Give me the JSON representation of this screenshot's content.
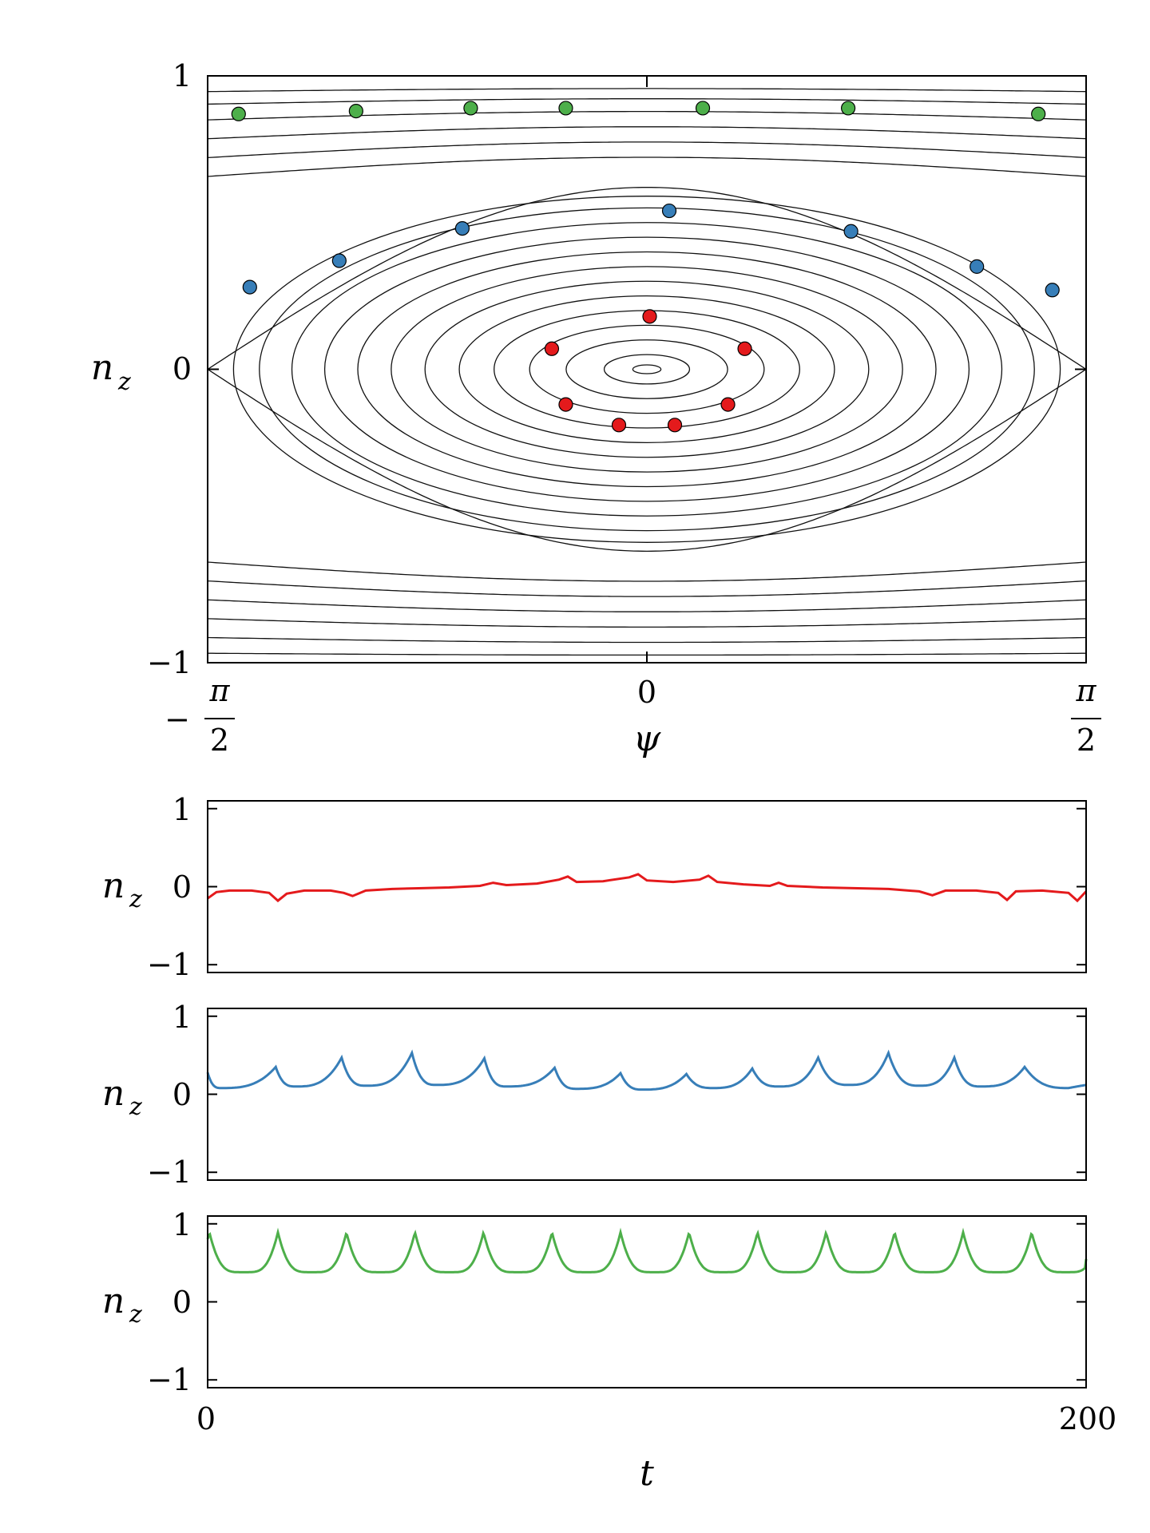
{
  "chart_data": [
    {
      "type": "scatter",
      "description_role": "phase-portrait",
      "xlabel": "ψ",
      "ylabel": "n",
      "ylabel_sub": "z",
      "xlim": [
        -1.5708,
        1.5708
      ],
      "ylim": [
        -1,
        1
      ],
      "xticks": [
        {
          "value": -1.5708,
          "label_sign": "−",
          "label_num": "π",
          "label_den": "2"
        },
        {
          "value": 0,
          "label": "0"
        },
        {
          "value": 1.5708,
          "label_sign": "",
          "label_num": "π",
          "label_den": "2"
        }
      ],
      "yticks": [
        {
          "value": -1,
          "label": "−1"
        },
        {
          "value": 0,
          "label": "0"
        },
        {
          "value": 1,
          "label": "1"
        }
      ],
      "separatrix_amplitude": 0.62,
      "closed_orbit_amplitudes": [
        0.015,
        0.05,
        0.1,
        0.15,
        0.2,
        0.25,
        0.3,
        0.35,
        0.4,
        0.45,
        0.5,
        0.55,
        0.59
      ],
      "open_orbit_levels": [
        -0.97,
        -0.92,
        -0.86,
        -0.8,
        -0.74,
        -0.68,
        0.68,
        0.74,
        0.8,
        0.86,
        0.91,
        0.95
      ],
      "series": [
        {
          "color": "#e41a1c",
          "points": [
            [
              0.01,
              0.18
            ],
            [
              0.35,
              0.07
            ],
            [
              0.29,
              -0.12
            ],
            [
              0.1,
              -0.19
            ],
            [
              -0.1,
              -0.19
            ],
            [
              -0.29,
              -0.12
            ],
            [
              -0.34,
              0.07
            ]
          ]
        },
        {
          "color": "#377eb8",
          "points": [
            [
              -1.42,
              0.28
            ],
            [
              -1.1,
              0.37
            ],
            [
              -0.66,
              0.48
            ],
            [
              0.08,
              0.54
            ],
            [
              0.73,
              0.47
            ],
            [
              1.18,
              0.35
            ],
            [
              1.45,
              0.27
            ]
          ]
        },
        {
          "color": "#4daf4a",
          "points": [
            [
              -1.46,
              0.87
            ],
            [
              -1.04,
              0.88
            ],
            [
              -0.63,
              0.89
            ],
            [
              -0.29,
              0.89
            ],
            [
              0.2,
              0.89
            ],
            [
              0.72,
              0.89
            ],
            [
              1.4,
              0.87
            ]
          ]
        }
      ]
    },
    {
      "type": "line",
      "ylabel": "n",
      "ylabel_sub": "z",
      "ylim": [
        -1.1,
        1.1
      ],
      "xlim": [
        0,
        200
      ],
      "yticks": [
        {
          "value": -1,
          "label": "−1"
        },
        {
          "value": 0,
          "label": "0"
        },
        {
          "value": 1,
          "label": "1"
        }
      ],
      "color": "#e41a1c",
      "x": [
        0,
        2,
        5,
        10,
        14,
        16,
        18,
        22,
        28,
        31,
        33,
        36,
        42,
        48,
        55,
        62,
        65,
        68,
        75,
        80,
        82,
        84,
        90,
        96,
        98,
        100,
        106,
        112,
        114,
        116,
        122,
        128,
        130,
        132,
        140,
        148,
        155,
        162,
        165,
        168,
        175,
        180,
        182,
        184,
        190,
        196,
        198,
        200
      ],
      "y": [
        -0.15,
        -0.07,
        -0.05,
        -0.05,
        -0.08,
        -0.18,
        -0.09,
        -0.05,
        -0.05,
        -0.08,
        -0.12,
        -0.05,
        -0.03,
        -0.02,
        -0.01,
        0.01,
        0.05,
        0.02,
        0.04,
        0.09,
        0.13,
        0.06,
        0.07,
        0.12,
        0.16,
        0.08,
        0.06,
        0.09,
        0.14,
        0.06,
        0.03,
        0.01,
        0.05,
        0.01,
        -0.01,
        -0.02,
        -0.03,
        -0.06,
        -0.11,
        -0.05,
        -0.05,
        -0.08,
        -0.17,
        -0.06,
        -0.05,
        -0.08,
        -0.18,
        -0.06
      ]
    },
    {
      "type": "line",
      "ylabel": "n",
      "ylabel_sub": "z",
      "ylim": [
        -1.1,
        1.1
      ],
      "xlim": [
        0,
        200
      ],
      "yticks": [
        {
          "value": -1,
          "label": "−1"
        },
        {
          "value": 0,
          "label": "0"
        },
        {
          "value": 1,
          "label": "1"
        }
      ],
      "color": "#377eb8",
      "peaks": [
        [
          0,
          0.28
        ],
        [
          15.5,
          0.35
        ],
        [
          30.5,
          0.47
        ],
        [
          46.5,
          0.53
        ],
        [
          63,
          0.46
        ],
        [
          79,
          0.34
        ],
        [
          94,
          0.27
        ],
        [
          109,
          0.26
        ],
        [
          124,
          0.33
        ],
        [
          139,
          0.47
        ],
        [
          155,
          0.53
        ],
        [
          170,
          0.47
        ],
        [
          186,
          0.35
        ]
      ],
      "valleys": [
        [
          3,
          0.08
        ],
        [
          20,
          0.1
        ],
        [
          36,
          0.11
        ],
        [
          52,
          0.12
        ],
        [
          68,
          0.1
        ],
        [
          84,
          0.07
        ],
        [
          99,
          0.06
        ],
        [
          115,
          0.08
        ],
        [
          130,
          0.1
        ],
        [
          146,
          0.12
        ],
        [
          162,
          0.11
        ],
        [
          176,
          0.1
        ],
        [
          196,
          0.08
        ],
        [
          200,
          0.12
        ]
      ]
    },
    {
      "type": "line",
      "ylabel": "n",
      "ylabel_sub": "z",
      "xlabel": "t",
      "ylim": [
        -1.1,
        1.1
      ],
      "xlim": [
        0,
        200
      ],
      "xticks": [
        {
          "value": 0,
          "label": "0"
        },
        {
          "value": 200,
          "label": "200"
        }
      ],
      "yticks": [
        {
          "value": -1,
          "label": "−1"
        },
        {
          "value": 0,
          "label": "0"
        },
        {
          "value": 1,
          "label": "1"
        }
      ],
      "color": "#4daf4a",
      "period": 15.6,
      "first_peak": 0.4,
      "max": 0.89,
      "min": 0.38,
      "end_value": 0.55
    }
  ]
}
